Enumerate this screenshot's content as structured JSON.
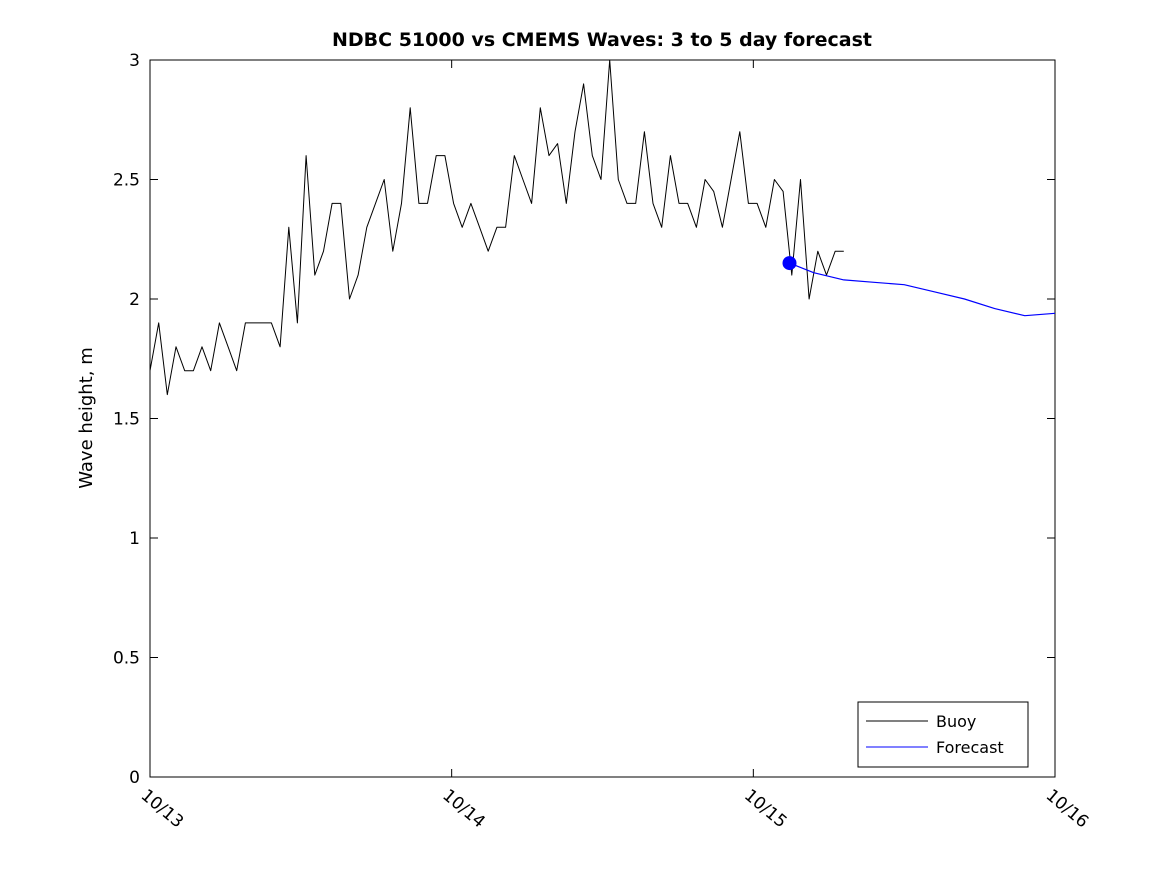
{
  "chart_data": {
    "type": "line",
    "title": "NDBC 51000 vs CMEMS Waves: 3 to 5 day forecast",
    "xlabel": "",
    "ylabel": "Wave height, m",
    "ylim": [
      0,
      3
    ],
    "xlim_days": [
      0,
      3
    ],
    "yticks": [
      0,
      0.5,
      1,
      1.5,
      2,
      2.5,
      3
    ],
    "ytick_labels": [
      "0",
      "0.5",
      "1",
      "1.5",
      "2",
      "2.5",
      "3"
    ],
    "xticks_days": [
      0,
      1,
      2,
      3
    ],
    "xtick_labels": [
      "10/13",
      "10/14",
      "10/15",
      "10/16"
    ],
    "grid": "off",
    "legend": {
      "position": "bottom-right",
      "entries": [
        {
          "label": "Buoy",
          "color": "#000000"
        },
        {
          "label": "Forecast",
          "color": "#0000ff"
        }
      ]
    },
    "series": [
      {
        "name": "Buoy",
        "color": "#000000",
        "line_width": 1,
        "t_start_days": 0.0,
        "t_end_days": 2.3,
        "values": [
          1.7,
          1.9,
          1.6,
          1.8,
          1.7,
          1.7,
          1.8,
          1.7,
          1.9,
          1.8,
          1.7,
          1.9,
          1.9,
          1.9,
          1.9,
          1.8,
          2.3,
          1.9,
          2.6,
          2.1,
          2.2,
          2.4,
          2.4,
          2.0,
          2.1,
          2.3,
          2.4,
          2.5,
          2.2,
          2.4,
          2.8,
          2.4,
          2.4,
          2.6,
          2.6,
          2.4,
          2.3,
          2.4,
          2.3,
          2.2,
          2.3,
          2.3,
          2.6,
          2.5,
          2.4,
          2.8,
          2.6,
          2.65,
          2.4,
          2.7,
          2.9,
          2.6,
          2.5,
          3.0,
          2.5,
          2.4,
          2.4,
          2.7,
          2.4,
          2.3,
          2.6,
          2.4,
          2.4,
          2.3,
          2.5,
          2.45,
          2.3,
          2.5,
          2.7,
          2.4,
          2.4,
          2.3,
          2.5,
          2.45,
          2.1,
          2.5,
          2.0,
          2.2,
          2.1,
          2.2,
          2.2
        ]
      },
      {
        "name": "Forecast",
        "color": "#0000ff",
        "line_width": 1.2,
        "marker_at_start": true,
        "marker_radius": 7,
        "t_days": [
          2.12,
          2.2,
          2.3,
          2.4,
          2.5,
          2.6,
          2.7,
          2.8,
          2.9,
          3.0
        ],
        "values": [
          2.15,
          2.11,
          2.08,
          2.07,
          2.06,
          2.03,
          2.0,
          1.96,
          1.93,
          1.94
        ]
      }
    ]
  }
}
